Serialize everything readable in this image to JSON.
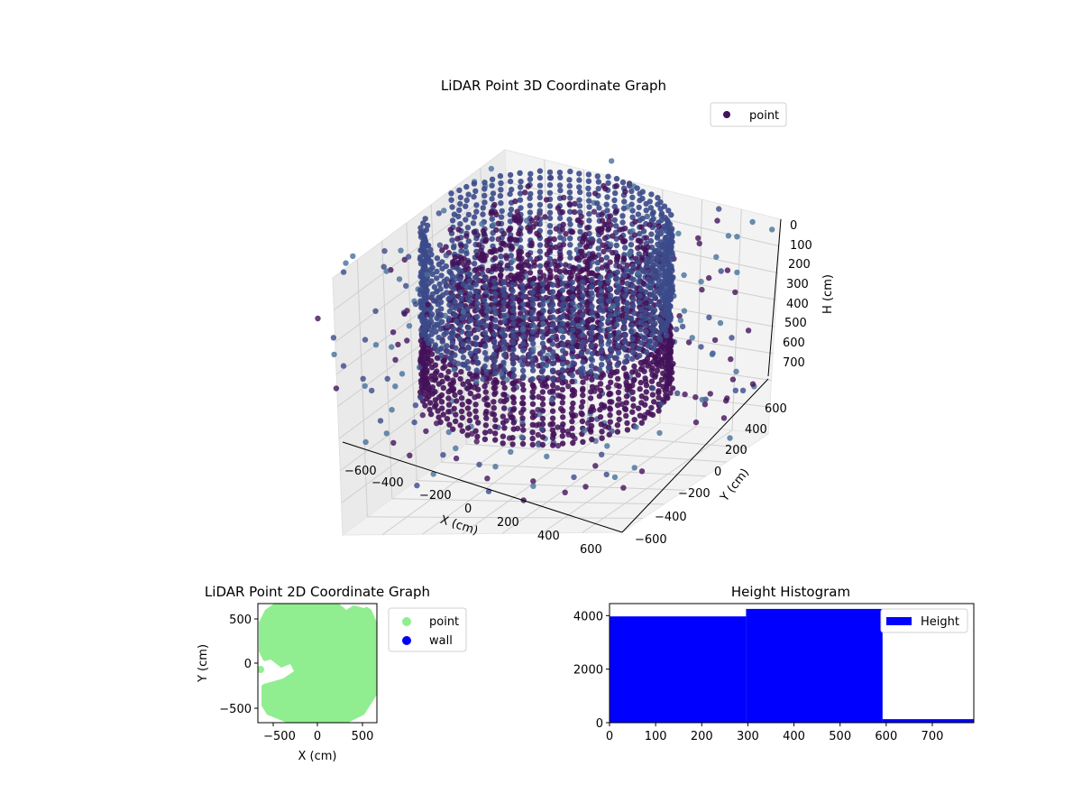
{
  "chart_data": [
    {
      "type": "scatter",
      "projection": "3d",
      "title": "LiDAR Point 3D Coordinate Graph",
      "xlabel": "X (cm)",
      "ylabel": "Y (cm)",
      "zlabel": "H (cm)",
      "x_ticks": [
        "−600",
        "−400",
        "−200",
        "0",
        "200",
        "400",
        "600"
      ],
      "y_ticks": [
        "−600",
        "−400",
        "−200",
        "0",
        "200",
        "400",
        "600"
      ],
      "z_ticks": [
        "0",
        "100",
        "200",
        "300",
        "400",
        "500",
        "600",
        "700"
      ],
      "xlim": [
        -650,
        650
      ],
      "ylim": [
        -650,
        650
      ],
      "zlim": [
        0,
        780
      ],
      "z_axis_inverted": true,
      "grid": true,
      "legend": {
        "placement": "top-right",
        "entries": [
          "point"
        ]
      },
      "series": [
        {
          "name": "point",
          "description_shape": "dense ring of points (radius ~450 cm) spanning heights 0-600 cm, plus sparse outliers",
          "color_map": "viridis-dark",
          "colors": {
            "dark": "#44125a",
            "mid": "#3b4a8a",
            "light": "#46709a"
          },
          "ring_radius": 450,
          "ring_height_range": [
            0,
            600
          ],
          "outlier_count": 420
        }
      ]
    },
    {
      "type": "scatter",
      "title": "LiDAR Point 2D Coordinate Graph",
      "xlabel": "X (cm)",
      "ylabel": "Y (cm)",
      "x_ticks": [
        "−500",
        "0",
        "500"
      ],
      "y_ticks": [
        "500",
        "0",
        "−500"
      ],
      "xlim": [
        -660,
        660
      ],
      "ylim": [
        -660,
        660
      ],
      "legend": {
        "placement": "right-outside",
        "entries": [
          "point",
          "wall"
        ]
      },
      "series": [
        {
          "name": "point",
          "color": "#90ee90"
        },
        {
          "name": "wall",
          "color": "#0000ff"
        }
      ]
    },
    {
      "type": "bar",
      "subtype": "histogram",
      "title": "Height Histogram",
      "x_ticks": [
        "0",
        "100",
        "200",
        "300",
        "400",
        "500",
        "600",
        "700"
      ],
      "y_ticks": [
        "0",
        "2000",
        "4000"
      ],
      "xlim": [
        0,
        790
      ],
      "ylim": [
        0,
        4450
      ],
      "bins": [
        {
          "from": 0,
          "to": 296,
          "count": 3970
        },
        {
          "from": 296,
          "to": 592,
          "count": 4250
        },
        {
          "from": 592,
          "to": 790,
          "count": 130
        }
      ],
      "color": "#0000ff",
      "legend": {
        "placement": "top-right",
        "entries": [
          "Height"
        ]
      },
      "series": [
        {
          "name": "Height"
        }
      ]
    }
  ]
}
